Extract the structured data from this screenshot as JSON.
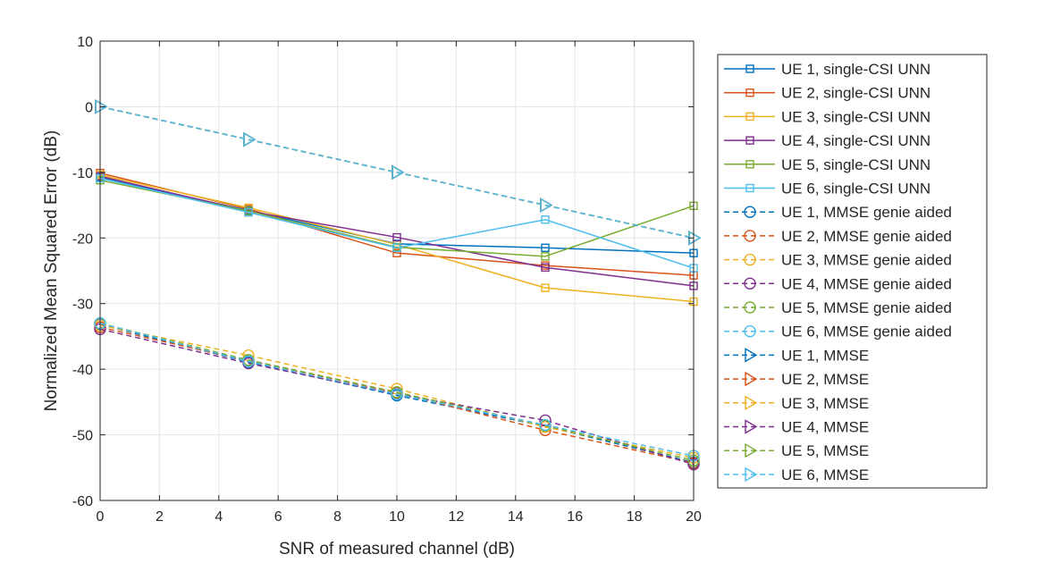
{
  "chart_data": {
    "type": "line",
    "title": "",
    "xlabel": "SNR of measured channel (dB)",
    "ylabel": "Normalized Mean Squared Error (dB)",
    "xlim": [
      0,
      20
    ],
    "ylim": [
      -60,
      10
    ],
    "xticks": [
      0,
      2,
      4,
      6,
      8,
      10,
      12,
      14,
      16,
      18,
      20
    ],
    "yticks": [
      10,
      0,
      -10,
      -20,
      -30,
      -40,
      -50,
      -60
    ],
    "grid": true,
    "legend_position": "outside-right",
    "x": [
      0,
      5,
      10,
      15,
      20
    ],
    "series": [
      {
        "name": "UE 1, single-CSI UNN",
        "color": "#0072BD",
        "style": "solid",
        "marker": "square",
        "values": [
          -10.8,
          -15.8,
          -20.9,
          -21.5,
          -22.3
        ]
      },
      {
        "name": "UE 2, single-CSI UNN",
        "color": "#D95319",
        "style": "solid",
        "marker": "square",
        "values": [
          -10.1,
          -15.6,
          -22.3,
          -24.2,
          -25.7
        ]
      },
      {
        "name": "UE 3, single-CSI UNN",
        "color": "#EDB120",
        "style": "solid",
        "marker": "square",
        "values": [
          -10.4,
          -15.4,
          -21.0,
          -27.6,
          -29.7
        ]
      },
      {
        "name": "UE 4, single-CSI UNN",
        "color": "#7E2F8E",
        "style": "solid",
        "marker": "square",
        "values": [
          -10.6,
          -15.9,
          -19.9,
          -24.5,
          -27.3
        ]
      },
      {
        "name": "UE 5, single-CSI UNN",
        "color": "#77AC30",
        "style": "solid",
        "marker": "square",
        "values": [
          -11.2,
          -15.9,
          -21.4,
          -22.8,
          -15.1
        ]
      },
      {
        "name": "UE 6, single-CSI UNN",
        "color": "#4DBEEE",
        "style": "solid",
        "marker": "square",
        "values": [
          -10.9,
          -16.1,
          -21.5,
          -17.2,
          -24.6
        ]
      },
      {
        "name": "UE 1, MMSE genie aided",
        "color": "#0072BD",
        "style": "dashed",
        "marker": "circle",
        "values": [
          -33.2,
          -38.9,
          -44.0,
          -48.7,
          -54.2
        ]
      },
      {
        "name": "UE 2, MMSE genie aided",
        "color": "#D95319",
        "style": "dashed",
        "marker": "circle",
        "values": [
          -33.6,
          -38.7,
          -43.6,
          -49.3,
          -54.3
        ]
      },
      {
        "name": "UE 3, MMSE genie aided",
        "color": "#EDB120",
        "style": "dashed",
        "marker": "circle",
        "values": [
          -33.3,
          -37.9,
          -43.0,
          -48.8,
          -53.5
        ]
      },
      {
        "name": "UE 4, MMSE genie aided",
        "color": "#7E2F8E",
        "style": "dashed",
        "marker": "circle",
        "values": [
          -33.9,
          -39.1,
          -43.8,
          -47.8,
          -54.5
        ]
      },
      {
        "name": "UE 5, MMSE genie aided",
        "color": "#77AC30",
        "style": "dashed",
        "marker": "circle",
        "values": [
          -33.0,
          -38.6,
          -43.5,
          -48.6,
          -53.9
        ]
      },
      {
        "name": "UE 6, MMSE genie aided",
        "color": "#4DBEEE",
        "style": "dashed",
        "marker": "circle",
        "values": [
          -33.0,
          -38.8,
          -43.8,
          -48.5,
          -53.2
        ]
      },
      {
        "name": "UE 1, MMSE",
        "color": "#0072BD",
        "style": "dashed",
        "marker": "triangle-right",
        "values": [
          0,
          -5,
          -10,
          -15,
          -20
        ]
      },
      {
        "name": "UE 2, MMSE",
        "color": "#D95319",
        "style": "dashed",
        "marker": "triangle-right",
        "values": [
          0,
          -5,
          -10,
          -15,
          -20
        ]
      },
      {
        "name": "UE 3, MMSE",
        "color": "#EDB120",
        "style": "dashed",
        "marker": "triangle-right",
        "values": [
          0,
          -5,
          -10,
          -15,
          -20
        ]
      },
      {
        "name": "UE 4, MMSE",
        "color": "#7E2F8E",
        "style": "dashed",
        "marker": "triangle-right",
        "values": [
          0,
          -5,
          -10,
          -15,
          -20
        ]
      },
      {
        "name": "UE 5, MMSE",
        "color": "#77AC30",
        "style": "dashed",
        "marker": "triangle-right",
        "values": [
          0,
          -5,
          -10,
          -15,
          -20
        ]
      },
      {
        "name": "UE 6, MMSE",
        "color": "#4DBEEE",
        "style": "dashed",
        "marker": "triangle-right",
        "values": [
          0,
          -5,
          -10,
          -15,
          -20
        ]
      }
    ]
  }
}
